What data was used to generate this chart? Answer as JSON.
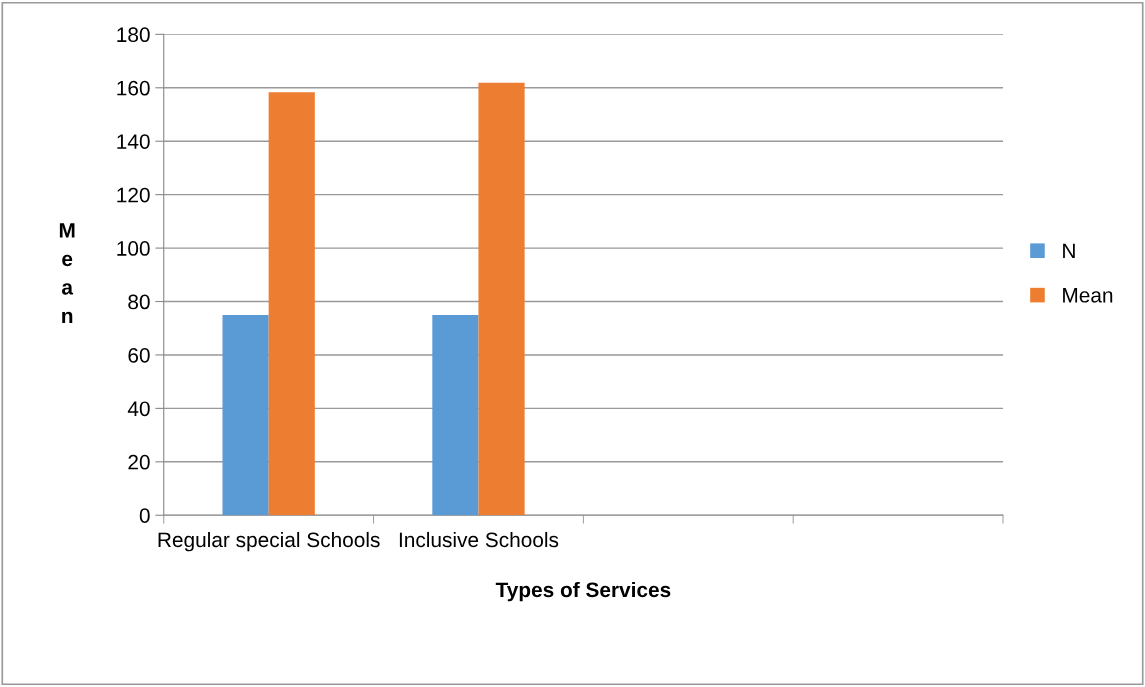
{
  "chart_data": {
    "type": "bar",
    "xlabel": "Types of Services",
    "ylabel": "Mean",
    "categories": [
      "Regular special Schools",
      "Inclusive Schools",
      null,
      null
    ],
    "series": [
      {
        "name": "N",
        "color": "#5b9bd5",
        "values": [
          75,
          75,
          null,
          null
        ]
      },
      {
        "name": "Mean",
        "color": "#ed7d31",
        "values": [
          158.3,
          161.9,
          null,
          null
        ]
      }
    ],
    "ylim": [
      0,
      180
    ],
    "yticks": [
      0,
      20,
      40,
      60,
      80,
      100,
      120,
      140,
      160,
      180
    ],
    "grid": "y",
    "legend": "right"
  }
}
